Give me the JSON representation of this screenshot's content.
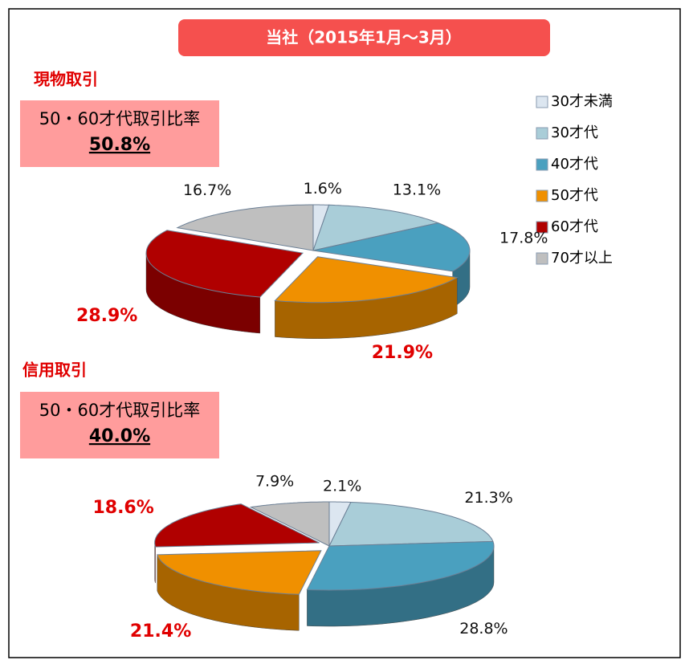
{
  "title": "当社（2015年1月～3月）",
  "legend": {
    "categories": [
      "30才未満",
      "30才代",
      "40才代",
      "50才代",
      "60才代",
      "70才以上"
    ],
    "colors": [
      "#dce6f0",
      "#a9cdd8",
      "#4aa0bf",
      "#f09000",
      "#b00000",
      "#bfbfbf"
    ]
  },
  "chart_data": [
    {
      "type": "pie",
      "title": "現物取引",
      "ratio_label": "50・60才代取引比率",
      "ratio": "50.8%",
      "values": [
        1.6,
        13.1,
        17.8,
        21.9,
        28.9,
        16.7
      ],
      "value_labels": [
        "1.6%",
        "13.1%",
        "17.8%",
        "21.9%",
        "28.9%",
        "16.7%"
      ]
    },
    {
      "type": "pie",
      "title": "信用取引",
      "ratio_label": "50・60才代取引比率",
      "ratio": "40.0%",
      "values": [
        2.1,
        21.3,
        28.8,
        21.4,
        18.6,
        7.9
      ],
      "value_labels": [
        "2.1%",
        "21.3%",
        "28.8%",
        "21.4%",
        "18.6%",
        "7.9%"
      ]
    }
  ]
}
